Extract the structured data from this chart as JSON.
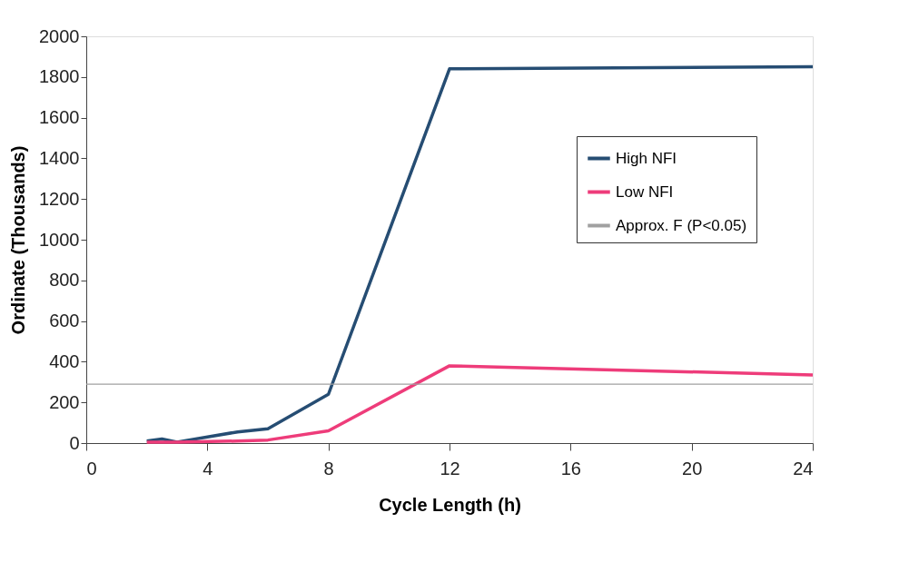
{
  "chart_data": {
    "type": "line",
    "xlabel": "Cycle Length (h)",
    "ylabel": "Ordinate (Thousands)",
    "xlim": [
      0,
      24
    ],
    "xticks": [
      0,
      4,
      8,
      12,
      16,
      20,
      24
    ],
    "ylim": [
      0,
      2000
    ],
    "yticks": [
      0,
      200,
      400,
      600,
      800,
      1000,
      1200,
      1400,
      1600,
      1800,
      2000
    ],
    "grid": false,
    "legend": "right",
    "line_style": "solid",
    "marker": "none",
    "series": [
      {
        "name": "High NFI",
        "color": "#264d73",
        "x": [
          2,
          2.5,
          3,
          5,
          6,
          8,
          12,
          24
        ],
        "values": [
          10,
          20,
          5,
          55,
          70,
          240,
          1840,
          1850
        ]
      },
      {
        "name": "Low NFI",
        "color": "#ee3c7a",
        "x": [
          2,
          3,
          5,
          6,
          8,
          12,
          24
        ],
        "values": [
          5,
          5,
          10,
          15,
          60,
          380,
          335
        ]
      },
      {
        "name": "Approx. F (P<0.05)",
        "color": "#a0a0a0",
        "x": [
          0,
          24
        ],
        "values": [
          290,
          290
        ]
      }
    ]
  }
}
